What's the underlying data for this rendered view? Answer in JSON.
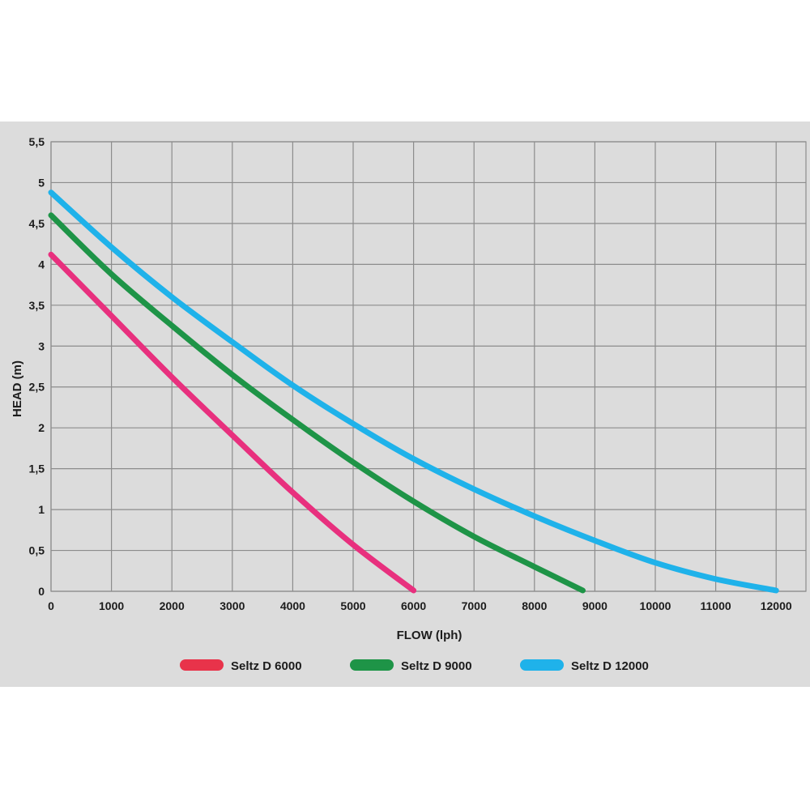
{
  "chart_data": {
    "type": "line",
    "xlabel": "FLOW (lph)",
    "ylabel": "HEAD (m)",
    "xlim": [
      0,
      12500
    ],
    "ylim": [
      0,
      5.5
    ],
    "x_ticks": [
      "0",
      "1000",
      "2000",
      "3000",
      "4000",
      "5000",
      "6000",
      "7000",
      "8000",
      "9000",
      "10000",
      "11000",
      "12000"
    ],
    "y_ticks": [
      "0",
      "0,5",
      "1",
      "1,5",
      "2",
      "2,5",
      "3",
      "3,5",
      "4",
      "4,5",
      "5",
      "5,5"
    ],
    "grid": true,
    "legend_position": "bottom",
    "series": [
      {
        "name": "Seltz D 6000",
        "color": "#e8307e",
        "legend_color": "#e8334a",
        "x": [
          0,
          1000,
          2000,
          3000,
          4000,
          5000,
          6000
        ],
        "y": [
          4.12,
          3.37,
          2.62,
          1.91,
          1.21,
          0.57,
          0.01
        ]
      },
      {
        "name": "Seltz D 9000",
        "color": "#1e9447",
        "legend_color": "#1e9447",
        "x": [
          0,
          1000,
          2000,
          3000,
          4000,
          5000,
          6000,
          7000,
          8000,
          8800
        ],
        "y": [
          4.6,
          3.88,
          3.25,
          2.65,
          2.1,
          1.58,
          1.1,
          0.67,
          0.3,
          0.01
        ]
      },
      {
        "name": "Seltz D 12000",
        "color": "#1fb2ea",
        "legend_color": "#1fb2ea",
        "x": [
          0,
          1000,
          2000,
          3000,
          4000,
          5000,
          6000,
          7000,
          8000,
          9000,
          10000,
          11000,
          12000
        ],
        "y": [
          4.88,
          4.21,
          3.6,
          3.05,
          2.52,
          2.05,
          1.62,
          1.25,
          0.92,
          0.62,
          0.35,
          0.15,
          0.01
        ]
      }
    ]
  }
}
